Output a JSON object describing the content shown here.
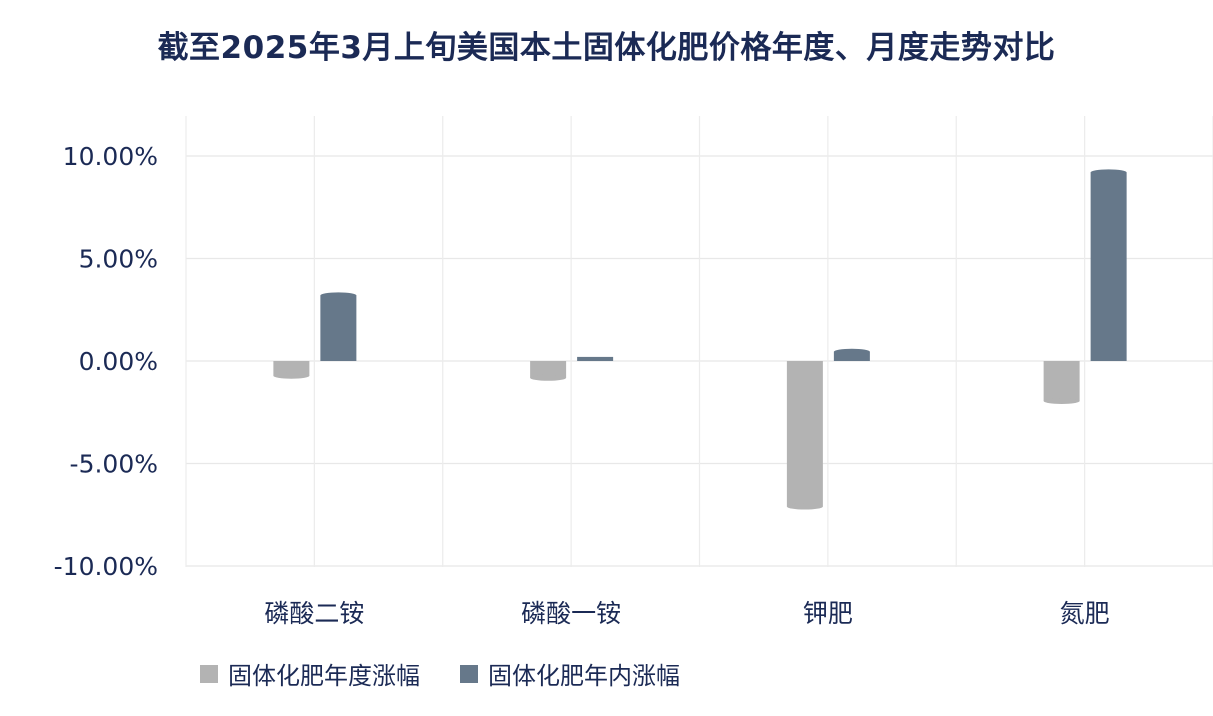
{
  "chart_data": {
    "type": "bar",
    "title": "截至2025年3月上旬美国本土固体化肥价格年度、月度走势对比",
    "categories": [
      "磷酸二铵",
      "磷酸一铵",
      "钾肥",
      "氮肥"
    ],
    "series": [
      {
        "name": "固体化肥年度涨幅",
        "color": "#b3b3b3",
        "values": [
          -0.72,
          -0.82,
          -7.1,
          -1.95
        ]
      },
      {
        "name": "固体化肥年内涨幅",
        "color": "#66788a",
        "values": [
          3.2,
          0.2,
          0.45,
          9.2
        ]
      }
    ],
    "ylim": [
      -10,
      10
    ],
    "yticks": [
      "10.00%",
      "5.00%",
      "0.00%",
      "-5.00%",
      "-10.00%"
    ],
    "ytick_values": [
      10,
      5,
      0,
      -5,
      -10
    ],
    "xlabel": "",
    "ylabel": "",
    "grid": true,
    "legend_position": "bottom-left"
  }
}
